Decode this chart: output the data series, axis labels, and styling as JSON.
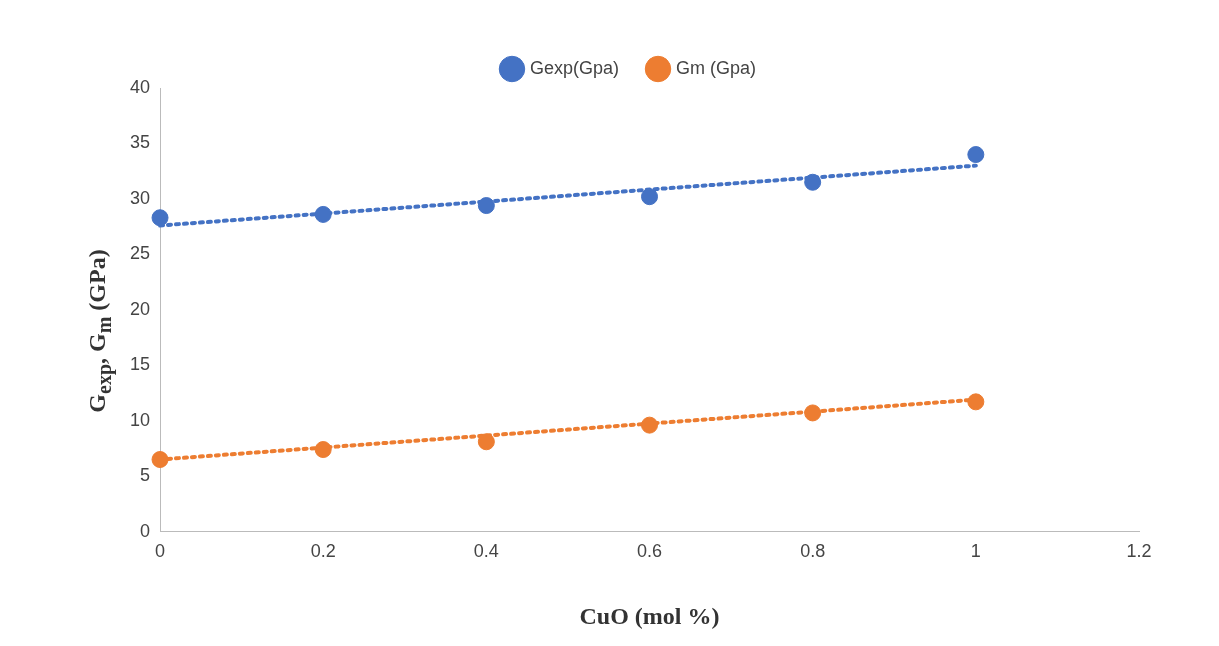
{
  "chart_data": {
    "type": "scatter",
    "xlabel": "CuO (mol %)",
    "ylabel": "G$_{exp}$, G$_{m}$ (GPa)",
    "x": [
      0,
      0.2,
      0.4,
      0.6,
      0.8,
      1
    ],
    "series": [
      {
        "name": "Gexp(Gpa)",
        "color": "#4472c4",
        "values": [
          28.3,
          28.6,
          29.4,
          30.2,
          31.5,
          34.0
        ]
      },
      {
        "name": "Gm (Gpa)",
        "color": "#ed7d31",
        "values": [
          6.5,
          7.4,
          8.1,
          9.6,
          10.7,
          11.7
        ]
      },
      {
        "type": "line",
        "color": "#4472c4",
        "x": [
          0,
          0.5,
          1
        ],
        "values": [
          27.6,
          30.3,
          33.0
        ],
        "line_style": "dotted",
        "marker": "none"
      },
      {
        "type": "line",
        "color": "#ed7d31",
        "x": [
          0,
          0.5,
          1
        ],
        "values": [
          6.5,
          9.2,
          11.9
        ],
        "line_style": "dotted",
        "marker": "none"
      }
    ],
    "xlim": [
      0,
      1.2
    ],
    "xticks": [
      0,
      0.2,
      0.4,
      0.6,
      0.8,
      1,
      1.2
    ],
    "ylim": [
      0,
      40
    ],
    "yticks": [
      0,
      5,
      10,
      15,
      20,
      25,
      30,
      35,
      40
    ],
    "grid": false,
    "legend": "top",
    "marker": "circle"
  }
}
